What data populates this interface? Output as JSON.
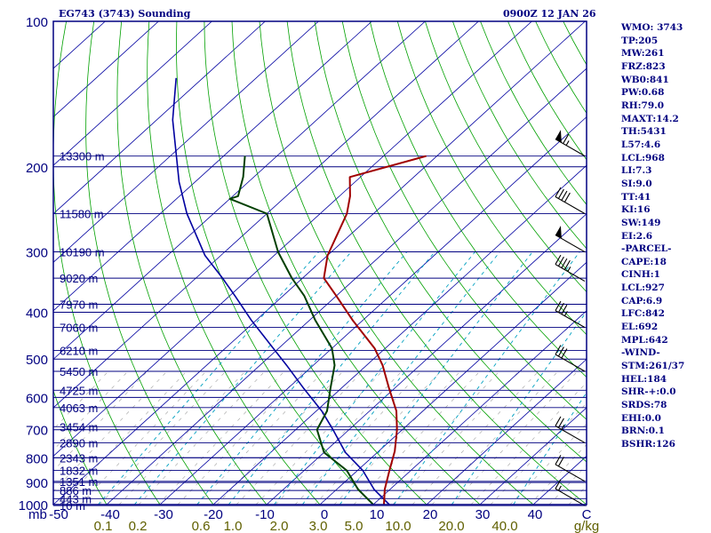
{
  "header": {
    "station": "EG743 (3743) Sounding",
    "valid_time": "0900Z 12 JAN 26"
  },
  "indices": [
    "WMO: 3743",
    "TP:205",
    "MW:261",
    "FRZ:823",
    "WB0:841",
    "PW:0.68",
    "RH:79.0",
    "MAXT:14.2",
    "TH:5431",
    "L57:4.6",
    "LCL:968",
    "LI:7.3",
    "SI:9.0",
    "TT:41",
    "KI:16",
    "SW:149",
    "EI:2.6",
    "-PARCEL-",
    "CAPE:18",
    "CINH:1",
    "LCL:927",
    "CAP:6.9",
    "LFC:842",
    "EL:692",
    "MPL:642",
    "-WIND-",
    "STM:261/37",
    "HEL:184",
    "SHR-+:0.0",
    "SRDS:78",
    "EHI:0.0",
    "BRN:0.1",
    "BSHR:126"
  ],
  "colors": {
    "frame": "#000080",
    "isobar": "#000080",
    "isotherm": "#0000a0",
    "dry_adiabat": "#00a000",
    "moist_adiabat": "#a0a0a0",
    "mixing_ratio": "#00a0c0",
    "temperature": "#a00000",
    "dewpoint": "#004000",
    "parcel": "#0000a0",
    "wind": "#000000"
  },
  "chart_data": {
    "type": "skew-t log-p sounding",
    "title": "EG743 (3743) Sounding",
    "xlabel": "°C",
    "ylabel": "mb",
    "pressure_axis": {
      "label": "mb",
      "range": [
        1000,
        100
      ],
      "ticks": [
        "100",
        "200",
        "300",
        "400",
        "500",
        "600",
        "700",
        "800",
        "900",
        "1000"
      ]
    },
    "temperature_axis": {
      "range": [
        -50,
        50
      ],
      "ticks": [
        "-50",
        "-40",
        "-30",
        "-20",
        "-10",
        "0",
        "10",
        "20",
        "30",
        "40",
        "C"
      ]
    },
    "mixing_ratio_labels": [
      "0.1",
      "0.2",
      "0.6",
      "1.0",
      "2.0",
      "3.0",
      "5.0",
      "10.0",
      "20.0",
      "40.0",
      "g/kg"
    ],
    "height_labels": [
      {
        "p": 190,
        "label": "13300 m"
      },
      {
        "p": 250,
        "label": "11580 m"
      },
      {
        "p": 300,
        "label": "10190 m"
      },
      {
        "p": 340,
        "label": "9020 m"
      },
      {
        "p": 385,
        "label": "7970 m"
      },
      {
        "p": 430,
        "label": "7060 m"
      },
      {
        "p": 480,
        "label": "6210 m"
      },
      {
        "p": 530,
        "label": "5450 m"
      },
      {
        "p": 580,
        "label": "4725 m"
      },
      {
        "p": 630,
        "label": "4063 m"
      },
      {
        "p": 690,
        "label": "3454 m"
      },
      {
        "p": 745,
        "label": "2890 m"
      },
      {
        "p": 800,
        "label": "2343 m"
      },
      {
        "p": 850,
        "label": "1832 m"
      },
      {
        "p": 895,
        "label": "1351 m"
      },
      {
        "p": 935,
        "label": "886 m"
      },
      {
        "p": 972,
        "label": "443 m"
      },
      {
        "p": 1005,
        "label": "10 m"
      }
    ],
    "temperature": [
      {
        "p": 1000,
        "t": 12
      },
      {
        "p": 930,
        "t": 9
      },
      {
        "p": 850,
        "t": 6
      },
      {
        "p": 775,
        "t": 3
      },
      {
        "p": 700,
        "t": -1
      },
      {
        "p": 640,
        "t": -5
      },
      {
        "p": 575,
        "t": -11
      },
      {
        "p": 515,
        "t": -17
      },
      {
        "p": 475,
        "t": -22
      },
      {
        "p": 415,
        "t": -32
      },
      {
        "p": 370,
        "t": -40
      },
      {
        "p": 340,
        "t": -46
      },
      {
        "p": 305,
        "t": -50
      },
      {
        "p": 250,
        "t": -55
      },
      {
        "p": 230,
        "t": -58
      },
      {
        "p": 210,
        "t": -62
      },
      {
        "p": 190,
        "t": -52
      }
    ],
    "dewpoint": [
      {
        "p": 1000,
        "t": 10
      },
      {
        "p": 930,
        "t": 4
      },
      {
        "p": 850,
        "t": -2
      },
      {
        "p": 780,
        "t": -10
      },
      {
        "p": 700,
        "t": -16
      },
      {
        "p": 640,
        "t": -18
      },
      {
        "p": 575,
        "t": -22
      },
      {
        "p": 515,
        "t": -26
      },
      {
        "p": 475,
        "t": -30
      },
      {
        "p": 415,
        "t": -39
      },
      {
        "p": 370,
        "t": -46
      },
      {
        "p": 340,
        "t": -52
      },
      {
        "p": 300,
        "t": -60
      },
      {
        "p": 250,
        "t": -70
      },
      {
        "p": 233,
        "t": -80
      },
      {
        "p": 230,
        "t": -79
      },
      {
        "p": 210,
        "t": -82
      },
      {
        "p": 190,
        "t": -86
      }
    ],
    "parcel": [
      {
        "p": 1000,
        "t": 13
      },
      {
        "p": 930,
        "t": 7
      },
      {
        "p": 850,
        "t": 1
      },
      {
        "p": 780,
        "t": -6
      },
      {
        "p": 700,
        "t": -13
      },
      {
        "p": 640,
        "t": -19
      },
      {
        "p": 575,
        "t": -27
      },
      {
        "p": 515,
        "t": -35
      },
      {
        "p": 475,
        "t": -41
      },
      {
        "p": 415,
        "t": -51
      },
      {
        "p": 370,
        "t": -59
      },
      {
        "p": 340,
        "t": -65
      },
      {
        "p": 305,
        "t": -73
      },
      {
        "p": 250,
        "t": -85
      },
      {
        "p": 215,
        "t": -93
      },
      {
        "p": 160,
        "t": -107
      },
      {
        "p": 131,
        "t": -115
      }
    ],
    "wind_barbs": [
      {
        "p": 190,
        "speed_kt": 65
      },
      {
        "p": 250,
        "speed_kt": 40
      },
      {
        "p": 300,
        "speed_kt": 50
      },
      {
        "p": 345,
        "speed_kt": 45
      },
      {
        "p": 430,
        "speed_kt": 35
      },
      {
        "p": 530,
        "speed_kt": 30
      },
      {
        "p": 745,
        "speed_kt": 25
      },
      {
        "p": 895,
        "speed_kt": 20
      },
      {
        "p": 1005,
        "speed_kt": 15
      }
    ]
  }
}
